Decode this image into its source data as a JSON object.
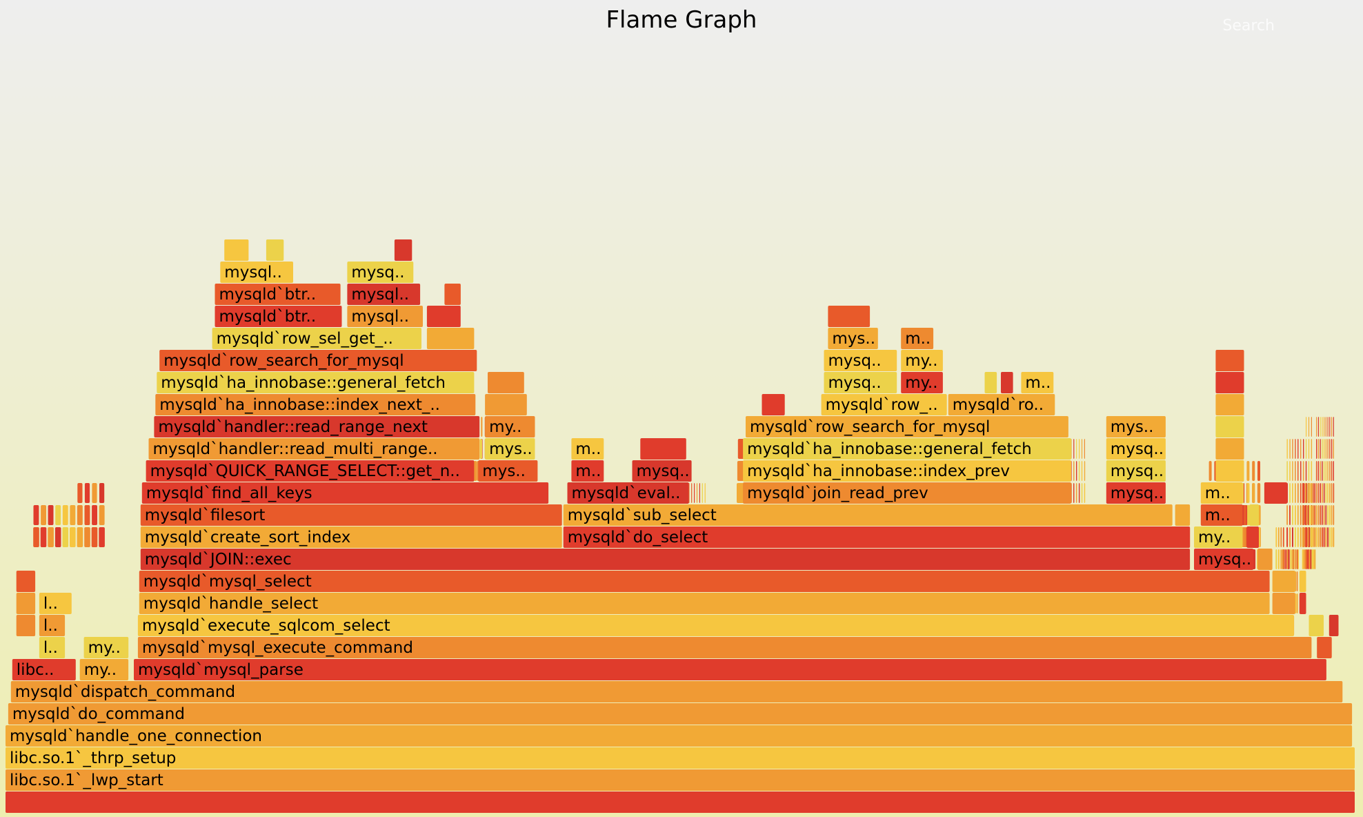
{
  "title": "Flame Graph",
  "search_label": "Search",
  "chart_data": {
    "type": "flame",
    "title": "Flame Graph",
    "total_samples": 1000,
    "palette": [
      "#e03c2c",
      "#e85a2a",
      "#ee8a30",
      "#f2aa36",
      "#f6c640",
      "#ecd24a",
      "#d8382c",
      "#f09a34"
    ],
    "frames": [
      {
        "n": "",
        "d": 0,
        "s": 0,
        "w": 1000
      },
      {
        "n": "libc.so.1`_lwp_start",
        "d": 1,
        "s": 0,
        "w": 1000
      },
      {
        "n": "libc.so.1`_thrp_setup",
        "d": 2,
        "s": 0,
        "w": 1000
      },
      {
        "n": "mysqld`handle_one_connection",
        "d": 3,
        "s": 0,
        "w": 998
      },
      {
        "n": "mysqld`do_command",
        "d": 4,
        "s": 2,
        "w": 996
      },
      {
        "n": "mysqld`dispatch_command",
        "d": 5,
        "s": 4,
        "w": 987
      },
      {
        "n": "libc..",
        "d": 6,
        "s": 5,
        "w": 48
      },
      {
        "n": "my..",
        "d": 6,
        "s": 55,
        "w": 37
      },
      {
        "n": "mysqld`mysql_parse",
        "d": 6,
        "s": 95,
        "w": 884
      },
      {
        "n": "l..",
        "d": 7,
        "s": 25,
        "w": 20
      },
      {
        "n": "my..",
        "d": 7,
        "s": 58,
        "w": 34
      },
      {
        "n": "mysqld`mysql_execute_command",
        "d": 7,
        "s": 98,
        "w": 870
      },
      {
        "n": "",
        "d": 7,
        "s": 971,
        "w": 12
      },
      {
        "n": "",
        "d": 8,
        "s": 8,
        "w": 15
      },
      {
        "n": "l..",
        "d": 8,
        "s": 25,
        "w": 20
      },
      {
        "n": "mysqld`execute_sqlcom_select",
        "d": 8,
        "s": 98,
        "w": 857
      },
      {
        "n": "",
        "d": 8,
        "s": 965,
        "w": 12
      },
      {
        "n": "",
        "d": 8,
        "s": 980,
        "w": 8
      },
      {
        "n": "",
        "d": 9,
        "s": 8,
        "w": 15
      },
      {
        "n": "l..",
        "d": 9,
        "s": 25,
        "w": 25
      },
      {
        "n": "mysqld`handle_select",
        "d": 9,
        "s": 99,
        "w": 838
      },
      {
        "n": "",
        "d": 9,
        "s": 938,
        "w": 18
      },
      {
        "n": "",
        "d": 9,
        "s": 958,
        "w": 6
      },
      {
        "n": "",
        "d": 10,
        "s": 8,
        "w": 15
      },
      {
        "n": "mysqld`mysql_select",
        "d": 10,
        "s": 99,
        "w": 838
      },
      {
        "n": "",
        "d": 10,
        "s": 938,
        "w": 18
      },
      {
        "n": "",
        "d": 10,
        "s": 958,
        "w": 6
      },
      {
        "n": "mysqld`JOIN::exec",
        "d": 11,
        "s": 100,
        "w": 778
      },
      {
        "n": "mysq..",
        "d": 11,
        "s": 880,
        "w": 45
      },
      {
        "n": "",
        "d": 11,
        "s": 927,
        "w": 12
      },
      {
        "n": "mysqld`create_sort_index",
        "d": 12,
        "s": 100,
        "w": 313
      },
      {
        "n": "mysqld`do_select",
        "d": 12,
        "s": 413,
        "w": 465
      },
      {
        "n": "my..",
        "d": 12,
        "s": 880,
        "w": 37
      },
      {
        "n": "",
        "d": 12,
        "s": 919,
        "w": 10
      },
      {
        "n": "mysqld`filesort",
        "d": 13,
        "s": 100,
        "w": 313
      },
      {
        "n": "mysqld`sub_select",
        "d": 13,
        "s": 413,
        "w": 452
      },
      {
        "n": "",
        "d": 13,
        "s": 866,
        "w": 12
      },
      {
        "n": "m..",
        "d": 13,
        "s": 885,
        "w": 32
      },
      {
        "n": "",
        "d": 13,
        "s": 921,
        "w": 8
      },
      {
        "n": "mysqld`find_all_keys",
        "d": 14,
        "s": 101,
        "w": 302
      },
      {
        "n": "mysqld`eval..",
        "d": 14,
        "s": 416,
        "w": 91
      },
      {
        "n": "mysqld`join_read_prev",
        "d": 14,
        "s": 546,
        "w": 244
      },
      {
        "n": "mysq..",
        "d": 14,
        "s": 815,
        "w": 45
      },
      {
        "n": "m..",
        "d": 14,
        "s": 885,
        "w": 32
      },
      {
        "n": "",
        "d": 14,
        "s": 932,
        "w": 18
      },
      {
        "n": "mysqld`QUICK_RANGE_SELECT::get_n..",
        "d": 15,
        "s": 104,
        "w": 244
      },
      {
        "n": "mys..",
        "d": 15,
        "s": 350,
        "w": 45
      },
      {
        "n": "m..",
        "d": 15,
        "s": 419,
        "w": 25
      },
      {
        "n": "mysq..",
        "d": 15,
        "s": 464,
        "w": 45
      },
      {
        "n": "mysqld`ha_innobase::index_prev",
        "d": 15,
        "s": 546,
        "w": 244
      },
      {
        "n": "mysq..",
        "d": 15,
        "s": 815,
        "w": 45
      },
      {
        "n": "",
        "d": 15,
        "s": 896,
        "w": 22
      },
      {
        "n": "mysqld`handler::read_multi_range..",
        "d": 16,
        "s": 106,
        "w": 246
      },
      {
        "n": "mys..",
        "d": 16,
        "s": 355,
        "w": 38
      },
      {
        "n": "m..",
        "d": 16,
        "s": 419,
        "w": 25
      },
      {
        "n": "",
        "d": 16,
        "s": 470,
        "w": 35
      },
      {
        "n": "mysqld`ha_innobase::general_fetch",
        "d": 16,
        "s": 546,
        "w": 244
      },
      {
        "n": "mysq..",
        "d": 16,
        "s": 815,
        "w": 45
      },
      {
        "n": "",
        "d": 16,
        "s": 896,
        "w": 22
      },
      {
        "n": "mysqld`handler::read_range_next",
        "d": 17,
        "s": 110,
        "w": 242
      },
      {
        "n": "my..",
        "d": 17,
        "s": 355,
        "w": 38
      },
      {
        "n": "mysqld`row_search_for_mysql",
        "d": 17,
        "s": 548,
        "w": 240
      },
      {
        "n": "mys..",
        "d": 17,
        "s": 815,
        "w": 45
      },
      {
        "n": "",
        "d": 17,
        "s": 896,
        "w": 22
      },
      {
        "n": "mysqld`ha_innobase::index_next_..",
        "d": 18,
        "s": 111,
        "w": 238
      },
      {
        "n": "",
        "d": 18,
        "s": 355,
        "w": 32
      },
      {
        "n": "",
        "d": 18,
        "s": 560,
        "w": 18
      },
      {
        "n": "mysqld`row_..",
        "d": 18,
        "s": 604,
        "w": 94
      },
      {
        "n": "mysqld`ro..",
        "d": 18,
        "s": 698,
        "w": 80
      },
      {
        "n": "",
        "d": 18,
        "s": 896,
        "w": 22
      },
      {
        "n": "mysqld`ha_innobase::general_fetch",
        "d": 19,
        "s": 112,
        "w": 236
      },
      {
        "n": "",
        "d": 19,
        "s": 357,
        "w": 28
      },
      {
        "n": "mysq..",
        "d": 19,
        "s": 606,
        "w": 55
      },
      {
        "n": "my..",
        "d": 19,
        "s": 663,
        "w": 32
      },
      {
        "n": "",
        "d": 19,
        "s": 725,
        "w": 10
      },
      {
        "n": "",
        "d": 19,
        "s": 737,
        "w": 10
      },
      {
        "n": "m..",
        "d": 19,
        "s": 752,
        "w": 25
      },
      {
        "n": "",
        "d": 19,
        "s": 896,
        "w": 22
      },
      {
        "n": "mysqld`row_search_for_mysql",
        "d": 20,
        "s": 114,
        "w": 236
      },
      {
        "n": "mysq..",
        "d": 20,
        "s": 606,
        "w": 55
      },
      {
        "n": "my..",
        "d": 20,
        "s": 663,
        "w": 32
      },
      {
        "n": "",
        "d": 20,
        "s": 896,
        "w": 22
      },
      {
        "n": "mysqld`row_sel_get_..",
        "d": 21,
        "s": 153,
        "w": 156
      },
      {
        "n": "",
        "d": 21,
        "s": 312,
        "w": 36
      },
      {
        "n": "mys..",
        "d": 21,
        "s": 609,
        "w": 38
      },
      {
        "n": "m..",
        "d": 21,
        "s": 663,
        "w": 25
      },
      {
        "n": "mysqld`btr..",
        "d": 22,
        "s": 155,
        "w": 95
      },
      {
        "n": "mysql..",
        "d": 22,
        "s": 253,
        "w": 57
      },
      {
        "n": "",
        "d": 22,
        "s": 312,
        "w": 26
      },
      {
        "n": "",
        "d": 22,
        "s": 609,
        "w": 32
      },
      {
        "n": "mysqld`btr..",
        "d": 23,
        "s": 155,
        "w": 94
      },
      {
        "n": "mysql..",
        "d": 23,
        "s": 253,
        "w": 55
      },
      {
        "n": "",
        "d": 23,
        "s": 325,
        "w": 13
      },
      {
        "n": "mysql..",
        "d": 24,
        "s": 159,
        "w": 55
      },
      {
        "n": "mysq..",
        "d": 24,
        "s": 253,
        "w": 50
      },
      {
        "n": "",
        "d": 25,
        "s": 162,
        "w": 19
      },
      {
        "n": "",
        "d": 25,
        "s": 193,
        "w": 14
      },
      {
        "n": "",
        "d": 25,
        "s": 288,
        "w": 14
      }
    ],
    "spikes": [
      {
        "d": 12,
        "s": 20,
        "w": 54
      },
      {
        "d": 12,
        "s": 340,
        "w": 28
      },
      {
        "d": 12,
        "s": 420,
        "w": 18
      },
      {
        "d": 12,
        "s": 470,
        "w": 24
      },
      {
        "d": 12,
        "s": 540,
        "w": 120
      },
      {
        "d": 12,
        "s": 600,
        "w": 35
      },
      {
        "d": 12,
        "s": 700,
        "w": 40
      },
      {
        "d": 12,
        "s": 760,
        "w": 30
      },
      {
        "d": 12,
        "s": 880,
        "w": 50
      },
      {
        "d": 12,
        "s": 948,
        "w": 20
      },
      {
        "d": 12,
        "s": 970,
        "w": 14
      },
      {
        "d": 11,
        "s": 164,
        "w": 30
      },
      {
        "d": 11,
        "s": 200,
        "w": 40
      },
      {
        "d": 11,
        "s": 240,
        "w": 36
      },
      {
        "d": 11,
        "s": 276,
        "w": 24
      },
      {
        "d": 11,
        "s": 330,
        "w": 40
      },
      {
        "d": 11,
        "s": 355,
        "w": 15
      },
      {
        "d": 11,
        "s": 420,
        "w": 18
      },
      {
        "d": 11,
        "s": 470,
        "w": 30
      },
      {
        "d": 11,
        "s": 505,
        "w": 20
      },
      {
        "d": 11,
        "s": 540,
        "w": 80
      },
      {
        "d": 11,
        "s": 600,
        "w": 30
      },
      {
        "d": 11,
        "s": 640,
        "w": 40
      },
      {
        "d": 11,
        "s": 690,
        "w": 30
      },
      {
        "d": 11,
        "s": 730,
        "w": 40
      },
      {
        "d": 11,
        "s": 780,
        "w": 20
      },
      {
        "d": 11,
        "s": 800,
        "w": 20
      },
      {
        "d": 11,
        "s": 890,
        "w": 40
      },
      {
        "d": 11,
        "s": 940,
        "w": 18
      },
      {
        "d": 11,
        "s": 960,
        "w": 10
      },
      {
        "d": 9,
        "s": 165,
        "w": 20
      },
      {
        "d": 9,
        "s": 220,
        "w": 30
      },
      {
        "d": 9,
        "s": 250,
        "w": 40
      },
      {
        "d": 9,
        "s": 270,
        "w": 14
      },
      {
        "d": 9,
        "s": 340,
        "w": 20
      },
      {
        "d": 9,
        "s": 420,
        "w": 18
      },
      {
        "d": 9,
        "s": 470,
        "w": 20
      },
      {
        "d": 9,
        "s": 505,
        "w": 20
      },
      {
        "d": 9,
        "s": 560,
        "w": 30
      },
      {
        "d": 9,
        "s": 600,
        "w": 20
      },
      {
        "d": 9,
        "s": 700,
        "w": 20
      },
      {
        "d": 9,
        "s": 760,
        "w": 24
      },
      {
        "d": 9,
        "s": 900,
        "w": 20
      },
      {
        "d": 9,
        "s": 945,
        "w": 12
      },
      {
        "d": 8,
        "s": 166,
        "w": 14
      },
      {
        "d": 8,
        "s": 230,
        "w": 20
      },
      {
        "d": 8,
        "s": 257,
        "w": 12
      },
      {
        "d": 8,
        "s": 340,
        "w": 10
      },
      {
        "d": 8,
        "s": 424,
        "w": 10
      },
      {
        "d": 8,
        "s": 475,
        "w": 10
      },
      {
        "d": 8,
        "s": 560,
        "w": 10
      },
      {
        "d": 8,
        "s": 610,
        "w": 10
      },
      {
        "d": 8,
        "s": 700,
        "w": 10
      },
      {
        "d": 8,
        "s": 765,
        "w": 10
      },
      {
        "d": 8,
        "s": 900,
        "w": 10
      },
      {
        "d": 8,
        "s": 946,
        "w": 8
      },
      {
        "d": 7,
        "s": 168,
        "w": 8
      },
      {
        "d": 7,
        "s": 240,
        "w": 8
      },
      {
        "d": 7,
        "s": 258,
        "w": 8
      },
      {
        "d": 7,
        "s": 345,
        "w": 6
      },
      {
        "d": 7,
        "s": 426,
        "w": 6
      },
      {
        "d": 7,
        "s": 565,
        "w": 6
      },
      {
        "d": 7,
        "s": 615,
        "w": 6
      },
      {
        "d": 7,
        "s": 705,
        "w": 6
      },
      {
        "d": 7,
        "s": 768,
        "w": 6
      },
      {
        "d": 7,
        "s": 902,
        "w": 6
      }
    ]
  }
}
